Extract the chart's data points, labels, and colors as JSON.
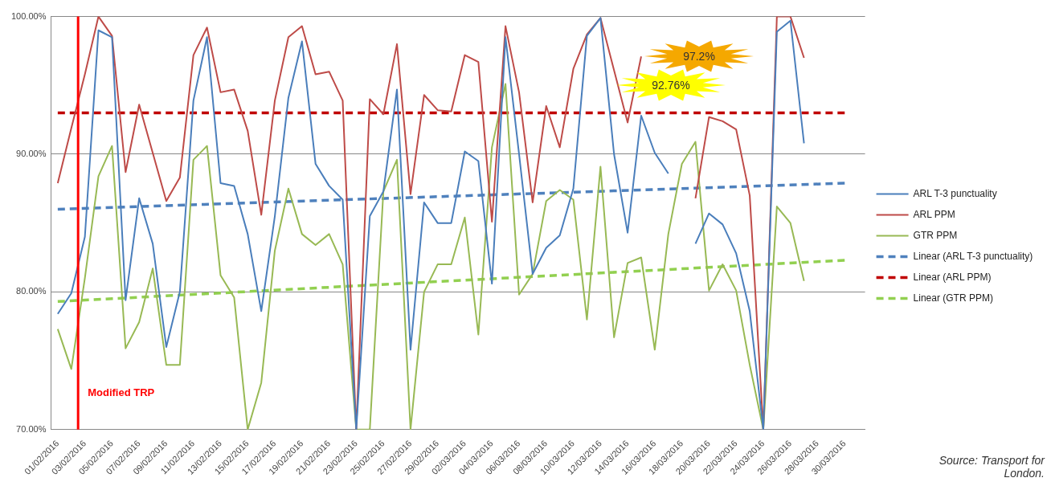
{
  "chart_data": {
    "type": "line",
    "categories": [
      "01/02/2016",
      null,
      "03/02/2016",
      null,
      "05/02/2016",
      null,
      "07/02/2016",
      null,
      "09/02/2016",
      null,
      "11/02/2016",
      null,
      "13/02/2016",
      null,
      "15/02/2016",
      null,
      "17/02/2016",
      null,
      "19/02/2016",
      null,
      "21/02/2016",
      null,
      "23/02/2016",
      null,
      "25/02/2016",
      null,
      "27/02/2016",
      null,
      "29/02/2016",
      null,
      "02/03/2016",
      null,
      "04/03/2016",
      null,
      "06/03/2016",
      null,
      "08/03/2016",
      null,
      "10/03/2016",
      null,
      "12/03/2016",
      null,
      "14/03/2016",
      null,
      "16/03/2016",
      null,
      "18/03/2016",
      null,
      "20/03/2016",
      null,
      "22/03/2016",
      null,
      "24/03/2016",
      null,
      "26/03/2016",
      null,
      "28/03/2016",
      null,
      "30/03/2016",
      null
    ],
    "series": [
      {
        "name": "ARL T-3 punctuality",
        "color": "#4a7ebb",
        "values": [
          78.4,
          79.9,
          84,
          99.0,
          98.5,
          79.4,
          86.8,
          83.5,
          76.0,
          80.0,
          93.9,
          98.5,
          87.9,
          87.7,
          84.2,
          78.6,
          85.5,
          94.1,
          98.2,
          89.3,
          87.7,
          86.7,
          70,
          85.5,
          87.3,
          94.7,
          75.8,
          86.5,
          85.0,
          85.0,
          90.2,
          89.5,
          80.6,
          98.5,
          90,
          81.3,
          83.2,
          84.1,
          87.5,
          98.6,
          99.9,
          90,
          84.3,
          92.8,
          90.1,
          88.6,
          null,
          83.5,
          85.7,
          84.9,
          82.8,
          78.6,
          70,
          98.9,
          99.7,
          90.8,
          null,
          null,
          null,
          null
        ]
      },
      {
        "name": "ARL PPM",
        "color": "#be4b48",
        "values": [
          87.9,
          91.9,
          95.8,
          100,
          98.6,
          88.7,
          93.6,
          90.1,
          86.6,
          88.3,
          97.2,
          99.2,
          94.5,
          94.7,
          91.7,
          85.6,
          93.9,
          98.5,
          99.3,
          95.8,
          96.0,
          93.9,
          70,
          94.0,
          92.9,
          98.0,
          87.1,
          94.3,
          93.2,
          93.1,
          97.2,
          96.7,
          85.1,
          99.3,
          94.5,
          86.5,
          93.5,
          90.5,
          96.2,
          98.7,
          99.9,
          96.1,
          92.3,
          97.1,
          null,
          null,
          null,
          86.8,
          92.7,
          92.4,
          91.8,
          87.0,
          70,
          100,
          100,
          97.0,
          null,
          null,
          null,
          null
        ]
      },
      {
        "name": "GTR PPM",
        "color": "#98b954",
        "values": [
          77.3,
          74.4,
          81,
          88.4,
          90.6,
          75.9,
          77.8,
          81.7,
          74.7,
          74.7,
          89.6,
          90.6,
          81.2,
          79.6,
          70,
          73.4,
          83.0,
          87.5,
          84.2,
          83.4,
          84.2,
          82.0,
          70,
          70,
          87.3,
          89.6,
          70,
          80.0,
          82.0,
          82.0,
          85.4,
          76.9,
          90.5,
          95.1,
          79.8,
          81.3,
          86.6,
          87.4,
          86.7,
          78.0,
          89.1,
          76.7,
          82.1,
          82.5,
          75.8,
          84.2,
          89.3,
          90.9,
          80.1,
          82.0,
          80.1,
          74.7,
          70,
          86.2,
          85.0,
          80.8,
          null,
          null,
          null,
          null
        ]
      },
      {
        "name": "Linear (ARL T-3 punctuality)",
        "type": "line",
        "color": "#4f81bd",
        "line_style": "dashed",
        "x": [
          "01/02/2016",
          "30/03/2016"
        ],
        "values": [
          86.0,
          87.9
        ]
      },
      {
        "name": "Linear (ARL PPM)",
        "type": "line",
        "color": "#c00000",
        "line_style": "dashed",
        "x": [
          "01/02/2016",
          "30/03/2016"
        ],
        "values": [
          93.0,
          93.0
        ]
      },
      {
        "name": "Linear (GTR PPM)",
        "type": "line",
        "color": "#92d050",
        "line_style": "dashed",
        "x": [
          "01/02/2016",
          "30/03/2016"
        ],
        "values": [
          79.3,
          82.3
        ]
      }
    ],
    "ylim": [
      70,
      100
    ],
    "yticks": [
      {
        "value": 70,
        "label": "70.00%"
      },
      {
        "value": 80,
        "label": "80.00%"
      },
      {
        "value": 90,
        "label": "90.00%"
      },
      {
        "value": 100,
        "label": "100.00%"
      }
    ],
    "grid": "y",
    "legend": "right",
    "marker": "none",
    "ref_lines": [
      {
        "axis": "x",
        "value": "03/02/2016",
        "label": "Modified TRP",
        "color": "#ff0000"
      }
    ],
    "annotations": [
      "97.2%",
      "92.76%",
      "Source: Transport for London."
    ]
  }
}
